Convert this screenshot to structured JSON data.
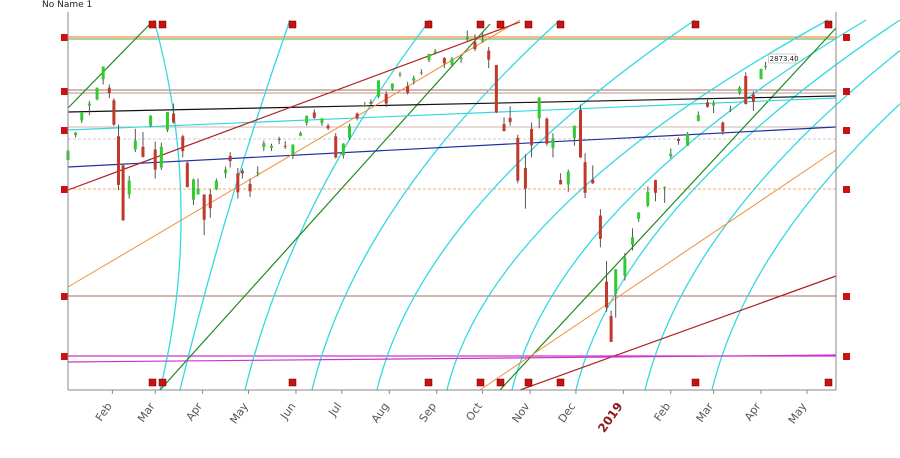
{
  "window": {
    "title": "No Name 1"
  },
  "chart_data": {
    "type": "candlestick",
    "title": "No Name 1",
    "xlabel": "",
    "ylabel": "",
    "x_range": [
      "2018-01-03",
      "2019-05-20"
    ],
    "y_range": [
      2260,
      2960
    ],
    "x_ticks": [
      {
        "label": "Feb",
        "date": "2018-02-01"
      },
      {
        "label": "Mar",
        "date": "2018-03-01"
      },
      {
        "label": "Apr",
        "date": "2018-04-01"
      },
      {
        "label": "May",
        "date": "2018-05-01"
      },
      {
        "label": "Jun",
        "date": "2018-06-01"
      },
      {
        "label": "Jul",
        "date": "2018-07-01"
      },
      {
        "label": "Aug",
        "date": "2018-08-01"
      },
      {
        "label": "Sep",
        "date": "2018-09-01"
      },
      {
        "label": "Oct",
        "date": "2018-10-01"
      },
      {
        "label": "Nov",
        "date": "2018-11-01"
      },
      {
        "label": "Dec",
        "date": "2018-12-01"
      },
      {
        "label": "2019",
        "date": "2019-01-01",
        "emphasis": true
      },
      {
        "label": "Feb",
        "date": "2019-02-01"
      },
      {
        "label": "Mar",
        "date": "2019-03-01"
      },
      {
        "label": "Apr",
        "date": "2019-04-01"
      },
      {
        "label": "May",
        "date": "2019-05-01"
      }
    ],
    "last_price_label": "2873.40",
    "series": [
      {
        "type": "ohlc",
        "points": [
          [
            "2018-01-03",
            2695,
            2714,
            2693,
            2713
          ],
          [
            "2018-01-08",
            2742,
            2748,
            2738,
            2747
          ],
          [
            "2018-01-12",
            2770,
            2786,
            2765,
            2786
          ],
          [
            "2018-01-17",
            2798,
            2807,
            2780,
            2802
          ],
          [
            "2018-01-22",
            2810,
            2832,
            2808,
            2832
          ],
          [
            "2018-01-26",
            2848,
            2872,
            2838,
            2872
          ],
          [
            "2018-01-30",
            2832,
            2838,
            2812,
            2822
          ],
          [
            "2018-02-02",
            2808,
            2812,
            2760,
            2762
          ],
          [
            "2018-02-05",
            2740,
            2762,
            2638,
            2648
          ],
          [
            "2018-02-08",
            2685,
            2686,
            2580,
            2581
          ],
          [
            "2018-02-12",
            2630,
            2665,
            2622,
            2656
          ],
          [
            "2018-02-16",
            2715,
            2754,
            2710,
            2732
          ],
          [
            "2018-02-21",
            2720,
            2748,
            2700,
            2701
          ],
          [
            "2018-02-26",
            2760,
            2780,
            2757,
            2779
          ],
          [
            "2018-03-01",
            2715,
            2730,
            2660,
            2677
          ],
          [
            "2018-03-05",
            2681,
            2728,
            2676,
            2720
          ],
          [
            "2018-03-09",
            2752,
            2786,
            2748,
            2786
          ],
          [
            "2018-03-13",
            2783,
            2802,
            2764,
            2766
          ],
          [
            "2018-03-19",
            2740,
            2743,
            2700,
            2712
          ],
          [
            "2018-03-22",
            2690,
            2692,
            2643,
            2644
          ],
          [
            "2018-03-26",
            2620,
            2660,
            2610,
            2658
          ],
          [
            "2018-03-29",
            2630,
            2660,
            2630,
            2641
          ],
          [
            "2018-04-02",
            2630,
            2630,
            2553,
            2582
          ],
          [
            "2018-04-06",
            2630,
            2640,
            2586,
            2604
          ],
          [
            "2018-04-10",
            2640,
            2660,
            2638,
            2656
          ],
          [
            "2018-04-16",
            2670,
            2683,
            2661,
            2677
          ],
          [
            "2018-04-19",
            2703,
            2710,
            2681,
            2693
          ],
          [
            "2018-04-24",
            2670,
            2680,
            2622,
            2634
          ],
          [
            "2018-04-27",
            2675,
            2679,
            2660,
            2670
          ],
          [
            "2018-05-02",
            2650,
            2660,
            2625,
            2636
          ],
          [
            "2018-05-07",
            2670,
            2683,
            2664,
            2672
          ],
          [
            "2018-05-11",
            2720,
            2732,
            2712,
            2727
          ],
          [
            "2018-05-16",
            2718,
            2726,
            2712,
            2722
          ],
          [
            "2018-05-21",
            2735,
            2739,
            2725,
            2733
          ],
          [
            "2018-05-25",
            2722,
            2731,
            2716,
            2721
          ],
          [
            "2018-05-30",
            2705,
            2725,
            2697,
            2724
          ],
          [
            "2018-06-04",
            2741,
            2749,
            2740,
            2746
          ],
          [
            "2018-06-08",
            2765,
            2779,
            2760,
            2779
          ],
          [
            "2018-06-13",
            2785,
            2791,
            2773,
            2775
          ],
          [
            "2018-06-18",
            2765,
            2774,
            2760,
            2774
          ],
          [
            "2018-06-22",
            2760,
            2764,
            2752,
            2755
          ],
          [
            "2018-06-27",
            2740,
            2746,
            2698,
            2700
          ],
          [
            "2018-07-02",
            2704,
            2727,
            2698,
            2726
          ],
          [
            "2018-07-06",
            2737,
            2764,
            2733,
            2760
          ],
          [
            "2018-07-11",
            2783,
            2785,
            2770,
            2774
          ],
          [
            "2018-07-16",
            2798,
            2805,
            2795,
            2798
          ],
          [
            "2018-07-20",
            2805,
            2810,
            2800,
            2802
          ],
          [
            "2018-07-25",
            2815,
            2845,
            2812,
            2846
          ],
          [
            "2018-07-30",
            2820,
            2825,
            2795,
            2802
          ],
          [
            "2018-08-03",
            2830,
            2840,
            2826,
            2840
          ],
          [
            "2018-08-08",
            2857,
            2862,
            2852,
            2858
          ],
          [
            "2018-08-13",
            2835,
            2843,
            2819,
            2822
          ],
          [
            "2018-08-17",
            2845,
            2855,
            2838,
            2850
          ],
          [
            "2018-08-22",
            2860,
            2867,
            2856,
            2861
          ],
          [
            "2018-08-27",
            2884,
            2895,
            2880,
            2896
          ],
          [
            "2018-08-31",
            2898,
            2905,
            2895,
            2901
          ],
          [
            "2018-09-06",
            2888,
            2890,
            2869,
            2878
          ],
          [
            "2018-09-11",
            2875,
            2890,
            2871,
            2887
          ],
          [
            "2018-09-17",
            2888,
            2890,
            2879,
            2888
          ],
          [
            "2018-09-21",
            2925,
            2940,
            2920,
            2929
          ],
          [
            "2018-09-26",
            2919,
            2933,
            2901,
            2905
          ],
          [
            "2018-10-01",
            2920,
            2937,
            2917,
            2924
          ],
          [
            "2018-10-05",
            2902,
            2909,
            2869,
            2885
          ],
          [
            "2018-10-10",
            2875,
            2875,
            2784,
            2785
          ],
          [
            "2018-10-15",
            2763,
            2776,
            2749,
            2750
          ],
          [
            "2018-10-19",
            2775,
            2797,
            2760,
            2767
          ],
          [
            "2018-10-24",
            2737,
            2743,
            2651,
            2656
          ],
          [
            "2018-10-29",
            2680,
            2706,
            2603,
            2641
          ],
          [
            "2018-11-02",
            2754,
            2766,
            2700,
            2723
          ],
          [
            "2018-11-07",
            2774,
            2814,
            2755,
            2813
          ],
          [
            "2018-11-12",
            2773,
            2776,
            2722,
            2726
          ],
          [
            "2018-11-16",
            2718,
            2746,
            2700,
            2736
          ],
          [
            "2018-11-21",
            2657,
            2670,
            2649,
            2649
          ],
          [
            "2018-11-26",
            2649,
            2677,
            2635,
            2673
          ],
          [
            "2018-11-30",
            2737,
            2760,
            2722,
            2760
          ],
          [
            "2018-12-04",
            2790,
            2800,
            2699,
            2700
          ],
          [
            "2018-12-07",
            2691,
            2708,
            2623,
            2633
          ],
          [
            "2018-12-12",
            2658,
            2685,
            2650,
            2651
          ],
          [
            "2018-12-17",
            2590,
            2602,
            2530,
            2546
          ],
          [
            "2018-12-21",
            2465,
            2504,
            2408,
            2416
          ],
          [
            "2018-12-24",
            2400,
            2410,
            2351,
            2351
          ],
          [
            "2018-12-27",
            2442,
            2489,
            2397,
            2488
          ],
          [
            "2019-01-02",
            2476,
            2519,
            2467,
            2510
          ],
          [
            "2019-01-07",
            2535,
            2566,
            2524,
            2549
          ],
          [
            "2019-01-11",
            2584,
            2596,
            2578,
            2596
          ],
          [
            "2019-01-17",
            2609,
            2645,
            2606,
            2635
          ],
          [
            "2019-01-22",
            2657,
            2658,
            2617,
            2633
          ],
          [
            "2019-01-28",
            2644,
            2645,
            2614,
            2644
          ],
          [
            "2019-02-01",
            2702,
            2717,
            2698,
            2707
          ],
          [
            "2019-02-06",
            2735,
            2738,
            2724,
            2731
          ],
          [
            "2019-02-12",
            2722,
            2748,
            2722,
            2745
          ],
          [
            "2019-02-19",
            2769,
            2787,
            2768,
            2780
          ],
          [
            "2019-02-25",
            2804,
            2813,
            2794,
            2796
          ],
          [
            "2019-03-01",
            2798,
            2808,
            2784,
            2803
          ],
          [
            "2019-03-07",
            2766,
            2768,
            2743,
            2749
          ],
          [
            "2019-03-12",
            2791,
            2798,
            2786,
            2791
          ],
          [
            "2019-03-18",
            2822,
            2835,
            2818,
            2832
          ],
          [
            "2019-03-22",
            2854,
            2861,
            2800,
            2801
          ],
          [
            "2019-03-27",
            2819,
            2825,
            2788,
            2805
          ],
          [
            "2019-04-01",
            2848,
            2868,
            2848,
            2867
          ],
          [
            "2019-04-04",
            2873,
            2881,
            2866,
            2873
          ]
        ]
      }
    ],
    "grid": false,
    "legend": "none"
  },
  "colors": {
    "up": "#2ecc2e",
    "down": "#c0392b",
    "wick": "#555555",
    "cyan_arc": "#35d8e0",
    "green_line": "#1f8a1f",
    "orange_line": "#f0903a",
    "red_line": "#b22020",
    "blue_line": "#2030a0",
    "black_line": "#111111",
    "magenta_line": "#cc33cc",
    "brown_line": "#a07060",
    "marker": "#cc1111"
  }
}
